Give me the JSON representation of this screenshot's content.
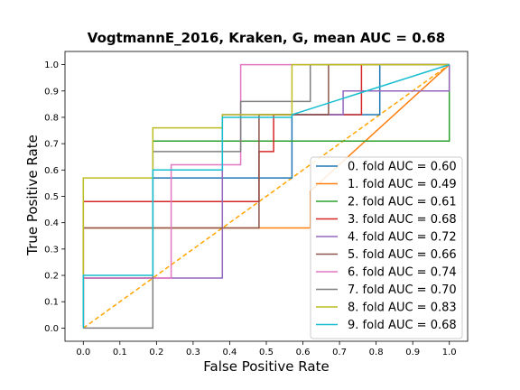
{
  "chart_data": {
    "type": "line",
    "title": "VogtmannE_2016, Kraken, G, mean AUC =  0.68",
    "xlabel": "False Positive Rate",
    "ylabel": "True Positive Rate",
    "xlim": [
      -0.05,
      1.05
    ],
    "ylim": [
      -0.05,
      1.05
    ],
    "xticks": [
      "0.0",
      "0.1",
      "0.2",
      "0.3",
      "0.4",
      "0.5",
      "0.6",
      "0.7",
      "0.8",
      "0.9",
      "1.0"
    ],
    "yticks": [
      "0.0",
      "0.1",
      "0.2",
      "0.3",
      "0.4",
      "0.5",
      "0.6",
      "0.7",
      "0.8",
      "0.9",
      "1.0"
    ],
    "grid": false,
    "legend_position": "lower right",
    "chance_line": {
      "x": [
        0,
        1
      ],
      "y": [
        0,
        1
      ],
      "color": "#ffa500",
      "style": "dashed"
    },
    "series": [
      {
        "name": "0. fold AUC = 0.60",
        "color": "#1f77b4",
        "x": [
          0,
          0,
          0.19,
          0.19,
          0.57,
          0.57,
          0.81,
          0.81,
          1
        ],
        "y": [
          0,
          0.19,
          0.19,
          0.57,
          0.57,
          0.81,
          0.81,
          1,
          1
        ]
      },
      {
        "name": "1. fold AUC = 0.49",
        "color": "#ff7f0e",
        "x": [
          0,
          0,
          0.62,
          0.62,
          1,
          1
        ],
        "y": [
          0,
          0.38,
          0.38,
          0.52,
          1,
          1
        ]
      },
      {
        "name": "2. fold AUC = 0.61",
        "color": "#2ca02c",
        "x": [
          0,
          0,
          0.19,
          0.19,
          1,
          1
        ],
        "y": [
          0,
          0.19,
          0.19,
          0.71,
          0.71,
          1
        ]
      },
      {
        "name": "3. fold AUC = 0.68",
        "color": "#d62728",
        "x": [
          0,
          0,
          0.48,
          0.48,
          0.52,
          0.52,
          0.76,
          0.76,
          1
        ],
        "y": [
          0,
          0.48,
          0.48,
          0.67,
          0.67,
          0.81,
          0.81,
          1,
          1
        ]
      },
      {
        "name": "4. fold AUC = 0.72",
        "color": "#9467bd",
        "x": [
          0,
          0,
          0.38,
          0.38,
          0.71,
          0.71,
          1,
          1
        ],
        "y": [
          0,
          0.19,
          0.19,
          0.81,
          0.81,
          0.9,
          0.9,
          1
        ]
      },
      {
        "name": "5. fold AUC = 0.66",
        "color": "#8c564b",
        "x": [
          0,
          0,
          0.48,
          0.48,
          0.67,
          0.67,
          1
        ],
        "y": [
          0,
          0.38,
          0.38,
          0.81,
          0.81,
          1,
          1
        ]
      },
      {
        "name": "6. fold AUC = 0.74",
        "color": "#e377c2",
        "x": [
          0,
          0,
          0.24,
          0.24,
          0.43,
          0.43,
          1
        ],
        "y": [
          0,
          0.19,
          0.19,
          0.62,
          0.62,
          1,
          1
        ]
      },
      {
        "name": "7. fold AUC = 0.70",
        "color": "#7f7f7f",
        "x": [
          0,
          0,
          0.19,
          0.19,
          0.43,
          0.43,
          0.62,
          0.62,
          1
        ],
        "y": [
          0,
          0,
          0,
          0.67,
          0.67,
          0.86,
          0.86,
          1,
          1
        ]
      },
      {
        "name": "8. fold AUC = 0.83",
        "color": "#bcbd22",
        "x": [
          0,
          0,
          0.19,
          0.19,
          0.38,
          0.38,
          0.57,
          0.57,
          1
        ],
        "y": [
          0,
          0.57,
          0.57,
          0.76,
          0.76,
          0.81,
          0.81,
          1,
          1
        ]
      },
      {
        "name": "9. fold AUC = 0.68",
        "color": "#17becf",
        "x": [
          0,
          0,
          0.19,
          0.19,
          0.38,
          0.38,
          0.57,
          0.57,
          1
        ],
        "y": [
          0,
          0.2,
          0.2,
          0.6,
          0.6,
          0.8,
          0.8,
          0.81,
          1
        ]
      }
    ]
  }
}
